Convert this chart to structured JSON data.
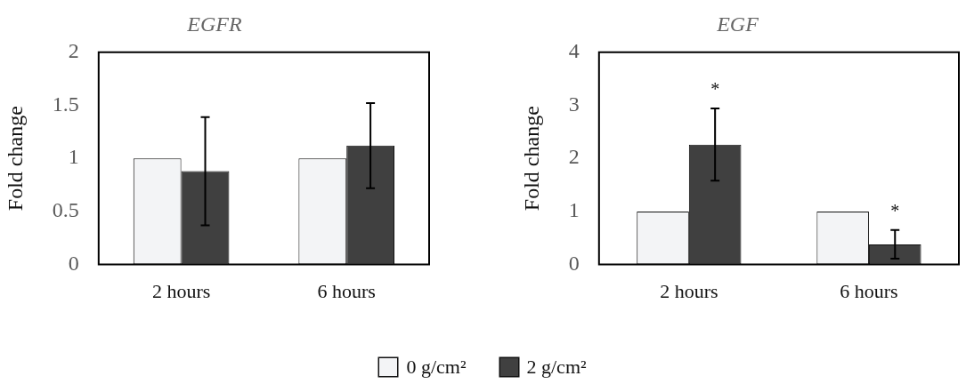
{
  "chart_data": [
    {
      "type": "bar",
      "title": "EGFR",
      "ylabel": "Fold change",
      "categories": [
        "2 hours",
        "6 hours"
      ],
      "series": [
        {
          "name": "0 g/cm²",
          "color": "#f3f4f6",
          "values": [
            1,
            1
          ],
          "errors": [
            null,
            null
          ]
        },
        {
          "name": "2 g/cm²",
          "color": "#404040",
          "values": [
            0.88,
            1.12
          ],
          "errors": [
            0.51,
            0.4
          ]
        }
      ],
      "ylim": [
        0,
        2
      ],
      "yticks": [
        0,
        0.5,
        1,
        1.5,
        2
      ],
      "grid": false,
      "legend": "bottom"
    },
    {
      "type": "bar",
      "title": "EGF",
      "ylabel": "Fold change",
      "categories": [
        "2 hours",
        "6 hours"
      ],
      "series": [
        {
          "color": "#f3f4f6",
          "values": [
            1,
            1
          ],
          "errors": [
            null,
            null
          ]
        },
        {
          "color": "#404040",
          "values": [
            2.26,
            0.38
          ],
          "errors": [
            0.68,
            0.27
          ]
        }
      ],
      "ylim": [
        0,
        4
      ],
      "yticks": [
        0,
        1,
        2,
        3,
        4
      ],
      "grid": false,
      "annotations": [
        {
          "text": "*",
          "x": "2 hours",
          "y": 2.26
        },
        {
          "text": "*",
          "x": "6 hours",
          "y": 0.38
        }
      ]
    }
  ]
}
